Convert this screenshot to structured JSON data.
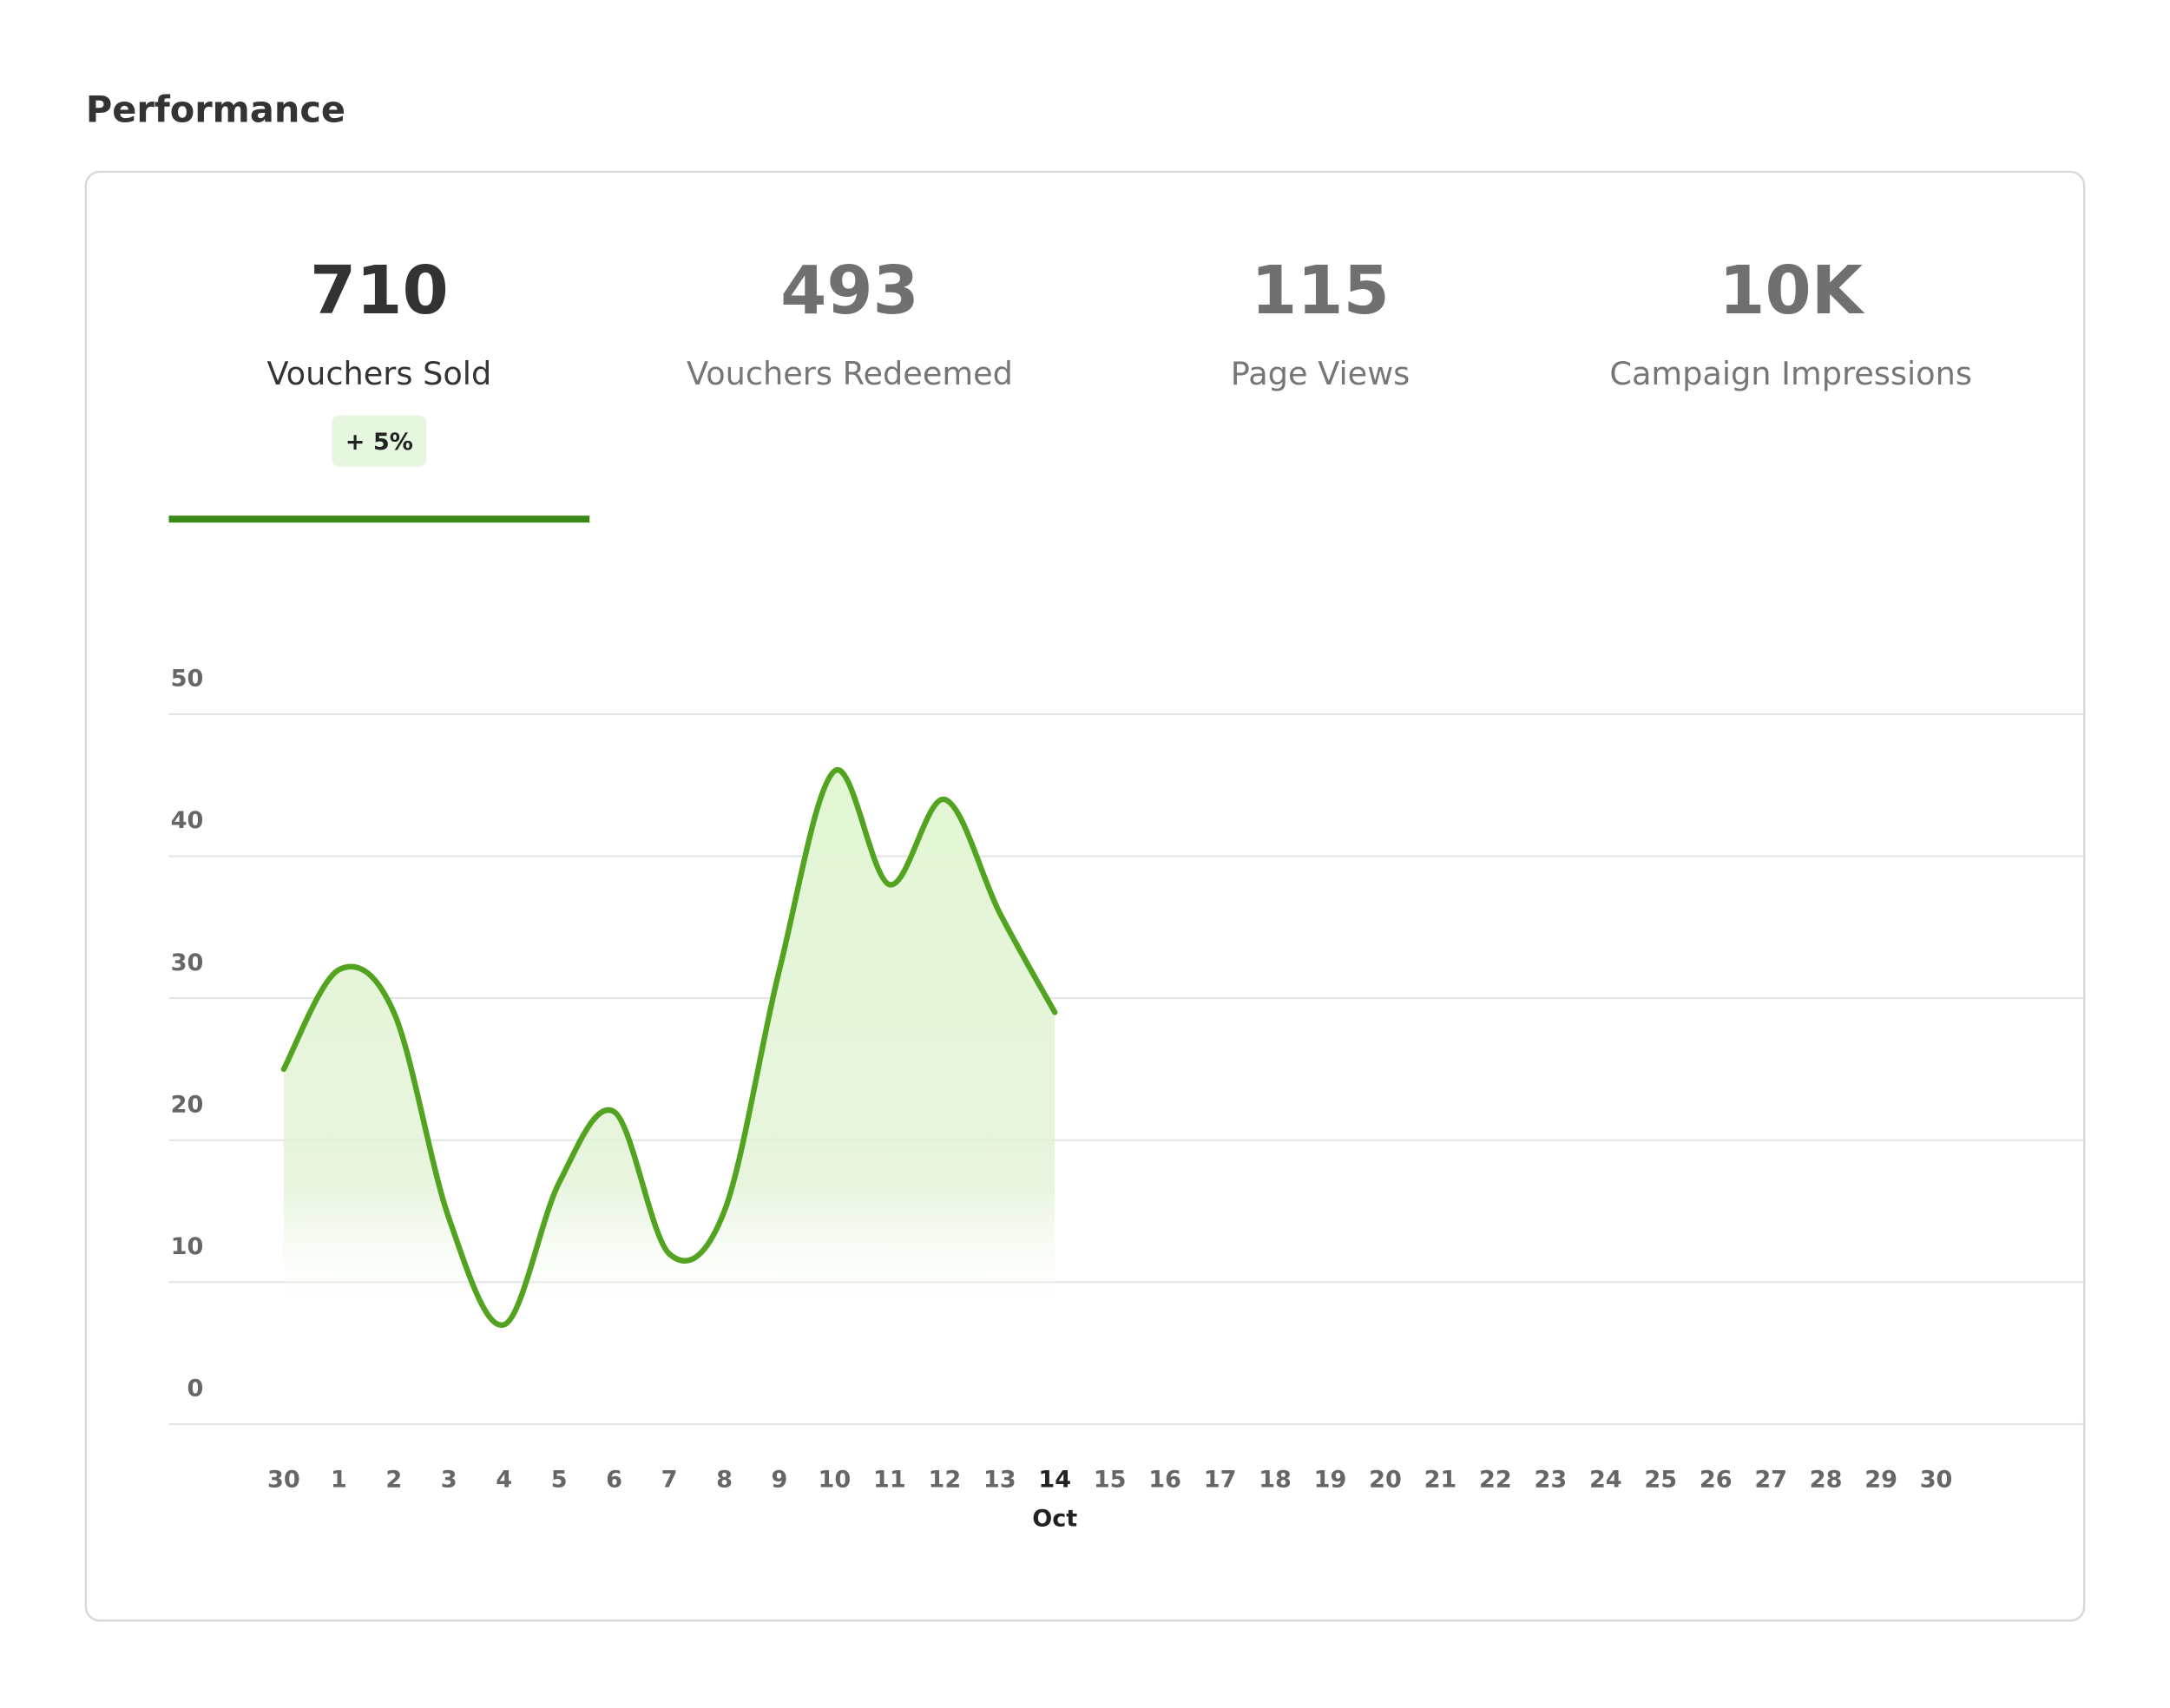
{
  "title": "Performance",
  "stats": [
    {
      "value": "710",
      "label": "Vouchers Sold",
      "change": "+ 5%"
    },
    {
      "value": "493",
      "label": "Vouchers Redeemed"
    },
    {
      "value": "115",
      "label": "Page Views"
    },
    {
      "value": "10K",
      "label": "Campaign Impressions"
    }
  ],
  "chart_data": {
    "type": "area",
    "categories": [
      "30",
      "1",
      "2",
      "3",
      "4",
      "5",
      "6",
      "7",
      "8",
      "9",
      "10",
      "11",
      "12",
      "13",
      "14",
      "15",
      "16",
      "17",
      "18",
      "19",
      "20",
      "21",
      "22",
      "23",
      "24",
      "25",
      "26",
      "27",
      "28",
      "29",
      "30"
    ],
    "values": [
      25,
      32,
      29,
      14.5,
      7,
      17,
      22,
      12,
      15,
      32,
      46,
      38,
      44,
      36,
      29,
      null,
      null,
      null,
      null,
      null,
      null,
      null,
      null,
      null,
      null,
      null,
      null,
      null,
      null,
      null,
      null
    ],
    "annotation": "Oct",
    "color": "#52a31f",
    "ylim": [
      0,
      50
    ],
    "yticks": [
      0,
      10,
      20,
      30,
      40,
      50
    ],
    "grid": true
  }
}
